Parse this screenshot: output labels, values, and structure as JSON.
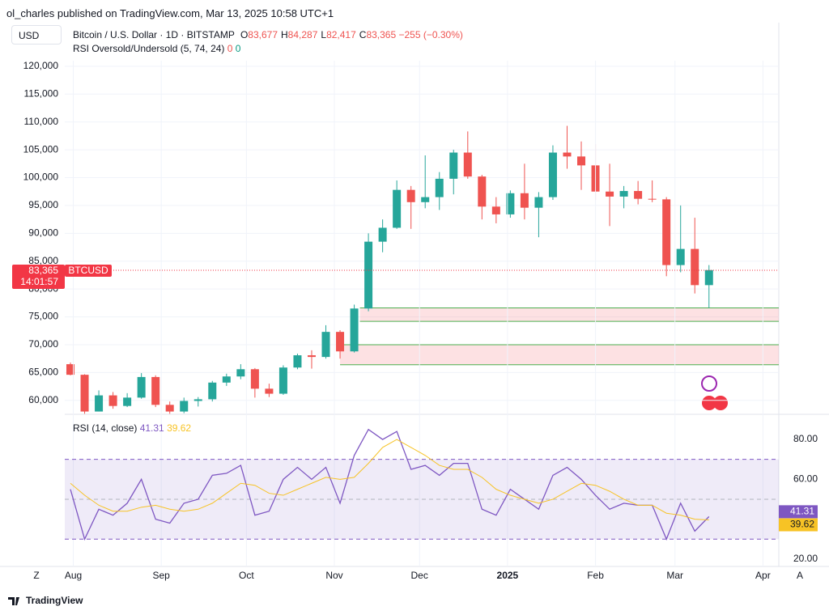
{
  "header": {
    "published": "ol_charles published on TradingView.com, Mar 13, 2025 10:58 UTC+1",
    "currency": "USD",
    "symbol": "Bitcoin / U.S. Dollar · 1D · BITSTAMP",
    "ohlc": [
      {
        "label": "O",
        "value": "83,677"
      },
      {
        "label": "H",
        "value": "84,287"
      },
      {
        "label": "L",
        "value": "82,417"
      },
      {
        "label": "C",
        "value": "83,365"
      }
    ],
    "change": "−255 (−0.30%)",
    "indicator": "RSI Oversold/Undersold (5, 74, 24)",
    "indicator_values": [
      "0",
      "0"
    ]
  },
  "chart_data": [
    {
      "type": "candlestick",
      "up_color": "#26a69a",
      "down_color": "#ef5350",
      "x": [
        -1,
        4,
        9,
        14,
        19,
        24,
        29,
        34,
        39,
        44,
        49,
        54,
        59,
        64,
        69,
        74,
        79,
        84,
        89,
        94,
        99,
        104,
        109,
        114,
        119,
        124,
        129,
        134,
        139,
        144,
        149,
        154,
        159,
        164,
        169,
        174,
        179,
        184,
        189,
        194,
        199,
        204,
        209,
        214,
        219,
        224
      ],
      "ohlc": [
        [
          66500,
          66800,
          64500,
          64600
        ],
        [
          64600,
          64700,
          57600,
          58000
        ],
        [
          58000,
          61800,
          58000,
          60900
        ],
        [
          60900,
          61500,
          58500,
          59000
        ],
        [
          59000,
          61300,
          58800,
          60500
        ],
        [
          60500,
          64900,
          60300,
          64200
        ],
        [
          64200,
          64500,
          58800,
          59200
        ],
        [
          59200,
          59800,
          57600,
          58000
        ],
        [
          58000,
          60500,
          57700,
          59900
        ],
        [
          59900,
          60600,
          58900,
          60200
        ],
        [
          60200,
          63500,
          59800,
          63200
        ],
        [
          63200,
          64800,
          62600,
          64300
        ],
        [
          64300,
          66500,
          63800,
          65600
        ],
        [
          65600,
          65800,
          60500,
          62100
        ],
        [
          62100,
          63000,
          60600,
          61200
        ],
        [
          61200,
          66300,
          61000,
          65900
        ],
        [
          65900,
          68400,
          65600,
          68100
        ],
        [
          68100,
          69000,
          65700,
          67800
        ],
        [
          67800,
          73500,
          67500,
          72300
        ],
        [
          72300,
          72600,
          67500,
          68800
        ],
        [
          68800,
          77200,
          68600,
          76500
        ],
        [
          76500,
          90000,
          76000,
          88500
        ],
        [
          88500,
          92500,
          86600,
          91000
        ],
        [
          91000,
          99500,
          90800,
          97800
        ],
        [
          97800,
          98500,
          90800,
          95600
        ],
        [
          95600,
          104000,
          94500,
          96500
        ],
        [
          96500,
          101000,
          94200,
          99800
        ],
        [
          99800,
          105000,
          97000,
          104500
        ],
        [
          104500,
          108300,
          99800,
          100200
        ],
        [
          100200,
          100500,
          92500,
          94800
        ],
        [
          94800,
          96500,
          91800,
          93400
        ],
        [
          93400,
          97700,
          92800,
          97200
        ],
        [
          97200,
          102500,
          92500,
          94600
        ],
        [
          94600,
          97400,
          89300,
          96500
        ],
        [
          96500,
          105800,
          96000,
          104500
        ],
        [
          104500,
          109300,
          101600,
          103800
        ],
        [
          103800,
          106500,
          97800,
          102200
        ],
        [
          102200,
          106000,
          96000,
          97500
        ],
        [
          97500,
          102500,
          91300,
          96600
        ],
        [
          96600,
          98500,
          94500,
          97600
        ],
        [
          97600,
          99400,
          95200,
          96200
        ],
        [
          96200,
          99500,
          95600,
          96100
        ],
        [
          96100,
          96500,
          82300,
          84300
        ],
        [
          84300,
          95000,
          83000,
          87200
        ],
        [
          87200,
          92800,
          79200,
          80700
        ],
        [
          80700,
          84300,
          76600,
          83400
        ]
      ],
      "zones": [
        {
          "top": 76600,
          "bottom": 74200,
          "start": 101
        },
        {
          "top": 70000,
          "bottom": 66400,
          "start": 94
        }
      ],
      "last_price": 83365,
      "last_label": "83,365",
      "last_name": "BTCUSD",
      "countdown": "14:01:57",
      "xlim": [
        -3,
        248.6
      ],
      "ylim": [
        57500,
        121000
      ],
      "xticks": [
        {
          "value": 0,
          "label": "Aug"
        },
        {
          "value": 31,
          "label": "Sep"
        },
        {
          "value": 61,
          "label": "Oct"
        },
        {
          "value": 92,
          "label": "Nov"
        },
        {
          "value": 122,
          "label": "Dec"
        },
        {
          "value": 153,
          "label": "2025"
        },
        {
          "value": 184,
          "label": "Feb"
        },
        {
          "value": 212,
          "label": "Mar"
        },
        {
          "value": 243,
          "label": "Apr"
        }
      ],
      "yticks": [
        {
          "value": 60000,
          "label": "60,000"
        },
        {
          "value": 65000,
          "label": "65,000"
        },
        {
          "value": 70000,
          "label": "70,000"
        },
        {
          "value": 75000,
          "label": "75,000"
        },
        {
          "value": 80000,
          "label": "80,000"
        },
        {
          "value": 85000,
          "label": "85,000"
        },
        {
          "value": 90000,
          "label": "90,000"
        },
        {
          "value": 95000,
          "label": "95,000"
        },
        {
          "value": 100000,
          "label": "100,000"
        },
        {
          "value": 105000,
          "label": "105,000"
        },
        {
          "value": 110000,
          "label": "110,000"
        },
        {
          "value": 115000,
          "label": "115,000"
        },
        {
          "value": 120000,
          "label": "120,000"
        }
      ]
    },
    {
      "type": "line",
      "title": "RSI (14, close)",
      "xlim": [
        -3,
        248.6
      ],
      "ylim": [
        16.3,
        92.6
      ],
      "bands": [
        30,
        50,
        70
      ],
      "yticks": [
        {
          "value": 80,
          "label": "80.00"
        },
        {
          "value": 60,
          "label": "60.00"
        },
        {
          "value": 20,
          "label": "20.00"
        }
      ],
      "x": [
        -1,
        4,
        9,
        14,
        19,
        24,
        29,
        34,
        39,
        44,
        49,
        54,
        59,
        64,
        69,
        74,
        79,
        84,
        89,
        94,
        99,
        104,
        109,
        114,
        119,
        124,
        129,
        134,
        139,
        144,
        149,
        154,
        159,
        164,
        169,
        174,
        179,
        184,
        189,
        194,
        199,
        204,
        209,
        214,
        219,
        224
      ],
      "series": [
        {
          "name": "RSI",
          "color": "#7e57c2",
          "last_label": "41.31",
          "values": [
            55,
            30,
            45,
            42,
            48,
            60,
            40,
            38,
            48,
            50,
            62,
            63,
            67,
            42,
            44,
            60,
            66,
            60,
            66,
            48,
            72,
            85,
            80,
            84,
            65,
            67,
            62,
            68,
            68,
            45,
            42,
            55,
            50,
            45,
            62,
            66,
            60,
            52,
            45,
            48,
            47,
            47,
            30,
            48,
            34,
            41.31
          ]
        },
        {
          "name": "RSI MA",
          "color": "#f7c325",
          "last_label": "39.62",
          "values": [
            58,
            52,
            47,
            44,
            44,
            46,
            47,
            45,
            44,
            45,
            48,
            53,
            58,
            57,
            53,
            52,
            55,
            58,
            61,
            60,
            61,
            68,
            76,
            80,
            76,
            72,
            67,
            65,
            65,
            61,
            55,
            52,
            50,
            48,
            50,
            54,
            58,
            57,
            54,
            50,
            47,
            47,
            43,
            42,
            40,
            39.62
          ]
        }
      ]
    }
  ],
  "footer": {
    "left": "Z",
    "right": "A",
    "brand": "TradingView"
  }
}
